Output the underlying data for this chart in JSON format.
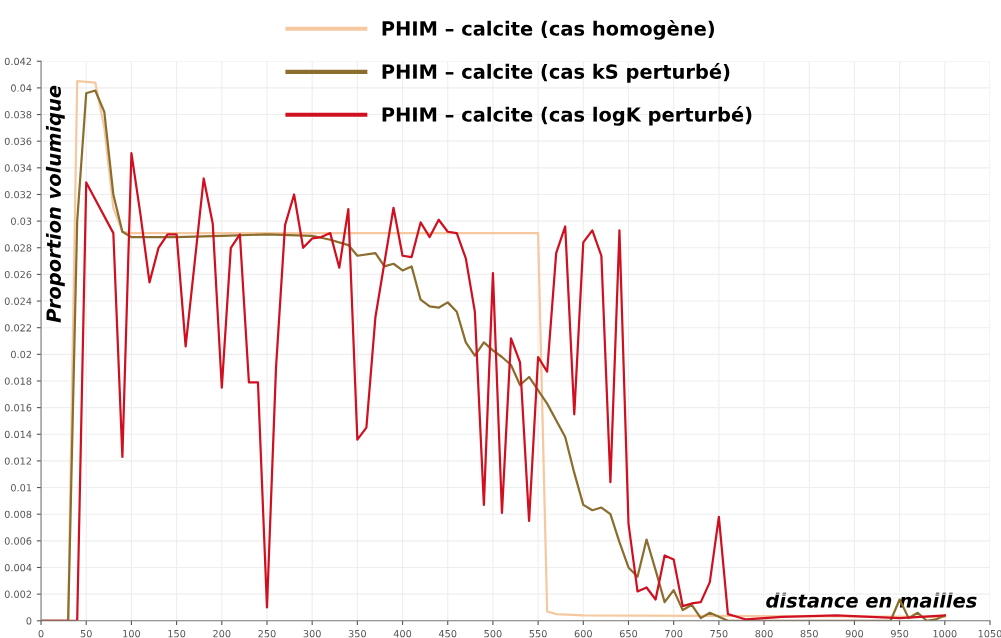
{
  "chart_data": {
    "type": "line",
    "xlabel": "distance en mailles",
    "ylabel": "Proportion volumique",
    "xlim": [
      0,
      1050
    ],
    "xticks": [
      0,
      50,
      100,
      150,
      200,
      250,
      300,
      350,
      400,
      450,
      500,
      550,
      600,
      650,
      700,
      750,
      800,
      850,
      900,
      950,
      1000,
      1050
    ],
    "ylim": [
      0,
      0.042
    ],
    "yticks": [
      0,
      0.002,
      0.004,
      0.006,
      0.008,
      0.01,
      0.012,
      0.014,
      0.016,
      0.018,
      0.02,
      0.022,
      0.024,
      0.026,
      0.028,
      0.03,
      0.032,
      0.034,
      0.036,
      0.038,
      0.04,
      0.042
    ],
    "grid": true,
    "legend": "top",
    "marker": "none",
    "line_style": "solid",
    "series": [
      {
        "name": "PHIM – calcite (cas homogène)",
        "color": "#f5c8a0",
        "x": [
          0,
          30,
          40,
          60,
          70,
          80,
          90,
          100,
          550,
          560,
          570,
          600,
          1000
        ],
        "values": [
          0,
          0,
          0.0405,
          0.0404,
          0.037,
          0.031,
          0.0292,
          0.0291,
          0.0291,
          0.0007,
          0.0005,
          0.0004,
          0.0003
        ]
      },
      {
        "name": "PHIM – calcite (cas kS perturbé)",
        "color": "#8b6d2e",
        "x": [
          0,
          30,
          40,
          50,
          60,
          70,
          80,
          90,
          100,
          150,
          200,
          250,
          300,
          320,
          340,
          350,
          370,
          380,
          390,
          400,
          410,
          420,
          430,
          440,
          450,
          460,
          470,
          480,
          490,
          500,
          510,
          520,
          530,
          540,
          560,
          580,
          590,
          600,
          610,
          620,
          630,
          640,
          650,
          660,
          670,
          680,
          690,
          700,
          710,
          720,
          730,
          740,
          760,
          940,
          950,
          960,
          970,
          980,
          990,
          1000
        ],
        "values": [
          0,
          0,
          0.03,
          0.0396,
          0.0398,
          0.0382,
          0.032,
          0.0292,
          0.0288,
          0.0288,
          0.0289,
          0.029,
          0.0289,
          0.0286,
          0.0282,
          0.0274,
          0.0276,
          0.0266,
          0.0268,
          0.0263,
          0.0266,
          0.0241,
          0.0236,
          0.0235,
          0.0239,
          0.0232,
          0.0209,
          0.0199,
          0.0209,
          0.0203,
          0.0198,
          0.0192,
          0.0177,
          0.0183,
          0.0163,
          0.0138,
          0.0111,
          0.0087,
          0.0083,
          0.0085,
          0.008,
          0.0059,
          0.004,
          0.0033,
          0.0061,
          0.0038,
          0.0014,
          0.0023,
          0.0008,
          0.0012,
          0.0002,
          0.0006,
          0,
          0,
          0.0016,
          0.0002,
          0.0006,
          0,
          0.0001,
          0.0004
        ]
      },
      {
        "name": "PHIM – calcite (cas logK perturbé)",
        "color": "#d01020",
        "x": [
          0,
          40,
          50,
          80,
          90,
          100,
          110,
          120,
          130,
          140,
          150,
          160,
          180,
          190,
          200,
          210,
          220,
          230,
          240,
          250,
          260,
          270,
          280,
          290,
          300,
          310,
          320,
          330,
          340,
          350,
          360,
          370,
          390,
          400,
          410,
          420,
          430,
          440,
          450,
          460,
          470,
          480,
          490,
          500,
          510,
          520,
          530,
          540,
          550,
          560,
          570,
          580,
          590,
          600,
          610,
          620,
          630,
          640,
          650,
          660,
          670,
          680,
          690,
          700,
          710,
          720,
          730,
          740,
          750,
          760,
          770,
          780,
          800,
          820,
          880,
          950,
          1000
        ],
        "values": [
          0,
          0,
          0.0329,
          0.0291,
          0.0123,
          0.0351,
          0.0305,
          0.0254,
          0.028,
          0.029,
          0.029,
          0.0206,
          0.0332,
          0.0298,
          0.0175,
          0.028,
          0.029,
          0.0179,
          0.0179,
          0.001,
          0.019,
          0.0297,
          0.032,
          0.028,
          0.0287,
          0.0288,
          0.0291,
          0.0265,
          0.0309,
          0.0136,
          0.0145,
          0.0228,
          0.031,
          0.0274,
          0.0273,
          0.0299,
          0.0288,
          0.0301,
          0.0292,
          0.0291,
          0.0272,
          0.0232,
          0.0087,
          0.0261,
          0.0081,
          0.0212,
          0.0194,
          0.0075,
          0.0198,
          0.0187,
          0.0276,
          0.0296,
          0.0155,
          0.0284,
          0.0293,
          0.0274,
          0.0104,
          0.0293,
          0.0073,
          0.0022,
          0.0025,
          0.0016,
          0.0049,
          0.0046,
          0.0011,
          0.0013,
          0.0014,
          0.0029,
          0.0078,
          0.0005,
          0.0003,
          0.0001,
          0.0002,
          0.0003,
          0.0004,
          0.0002,
          0.0004
        ]
      }
    ]
  }
}
